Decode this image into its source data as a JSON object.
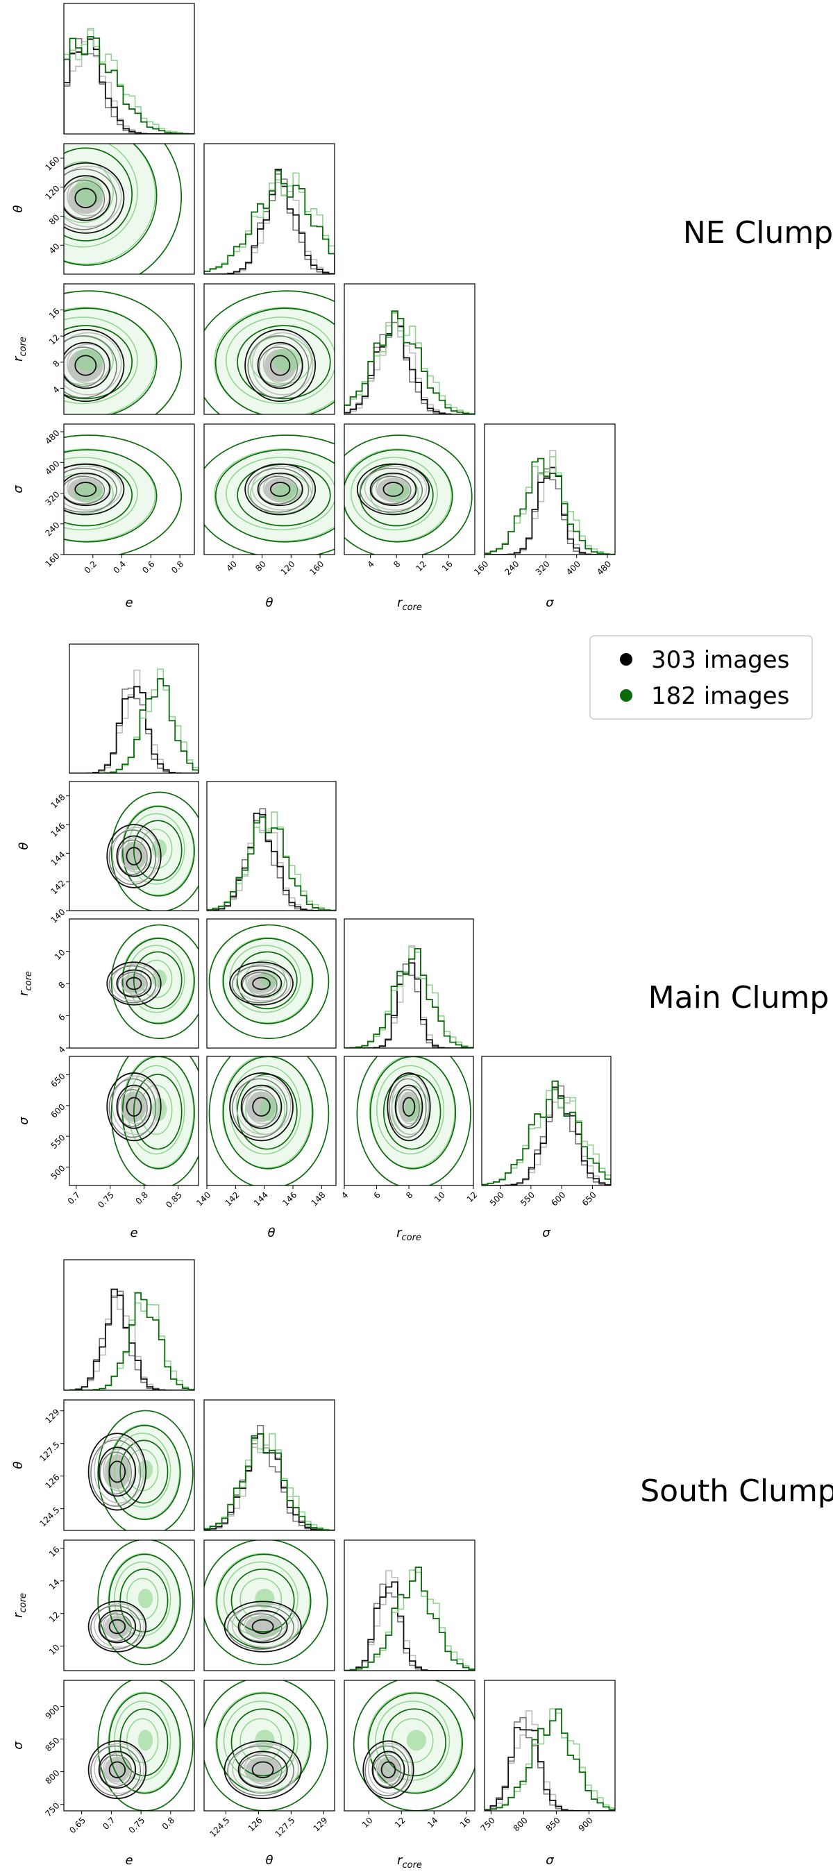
{
  "legend": [
    {
      "label": "303 images",
      "color": "#000000"
    },
    {
      "label": "182 images",
      "color": "#0a6b0a"
    }
  ],
  "colors": {
    "dark": "#111111",
    "grey": "#777777",
    "lightgrey": "#bdbdbd",
    "green": "#0a6b0a",
    "lightgreen": "#8fd48f"
  },
  "chart_data": [
    {
      "type": "corner",
      "title": "NE Clump",
      "params": [
        "e",
        "θ",
        "r_core",
        "σ"
      ],
      "axis_labels": [
        {
          "main": "e",
          "sub": ""
        },
        {
          "main": "θ",
          "sub": ""
        },
        {
          "main": "r",
          "sub": "core"
        },
        {
          "main": "σ",
          "sub": ""
        }
      ],
      "ranges": [
        [
          0,
          0.9
        ],
        [
          0,
          180
        ],
        [
          0,
          20
        ],
        [
          160,
          500
        ]
      ],
      "ticks": [
        [
          0.2,
          0.4,
          0.6,
          0.8
        ],
        [
          40,
          80,
          120,
          160
        ],
        [
          4,
          8,
          12,
          16
        ],
        [
          160,
          240,
          320,
          400,
          480
        ]
      ],
      "ytick_rows": [
        null,
        [
          40,
          80,
          120,
          160
        ],
        [
          4,
          8,
          12,
          16
        ],
        [
          160,
          240,
          320,
          400,
          480
        ]
      ],
      "posterior": {
        "303_images": {
          "mean": [
            0.15,
            105,
            7.5,
            330
          ],
          "sd": [
            0.12,
            22,
            2.5,
            30
          ]
        },
        "182_images": {
          "mean": [
            0.15,
            110,
            8,
            315
          ],
          "sd": [
            0.2,
            40,
            3.5,
            50
          ]
        }
      }
    },
    {
      "type": "corner",
      "title": "Main Clump",
      "params": [
        "e",
        "θ",
        "r_core",
        "σ"
      ],
      "axis_labels": [
        {
          "main": "e",
          "sub": ""
        },
        {
          "main": "θ",
          "sub": ""
        },
        {
          "main": "r",
          "sub": "core"
        },
        {
          "main": "σ",
          "sub": ""
        }
      ],
      "ranges": [
        [
          0.69,
          0.88
        ],
        [
          140,
          149
        ],
        [
          4,
          12
        ],
        [
          470,
          680
        ]
      ],
      "ticks": [
        [
          0.7,
          0.75,
          0.8,
          0.85
        ],
        [
          140,
          142,
          144,
          146,
          148
        ],
        [
          4,
          6,
          8,
          10,
          12
        ],
        [
          500,
          550,
          600,
          650
        ]
      ],
      "ytick_rows": [
        null,
        [
          140,
          142,
          144,
          146,
          148
        ],
        [
          4,
          6,
          8,
          10
        ],
        [
          500,
          550,
          600,
          650
        ]
      ],
      "posterior": {
        "303_images": {
          "mean": [
            0.785,
            143.8,
            8,
            598
          ],
          "sd": [
            0.018,
            1,
            0.6,
            25
          ]
        },
        "182_images": {
          "mean": [
            0.82,
            144.2,
            8.2,
            590
          ],
          "sd": [
            0.022,
            1.3,
            1.1,
            38
          ]
        }
      }
    },
    {
      "type": "corner",
      "title": "South Clump",
      "params": [
        "e",
        "θ",
        "r_core",
        "σ"
      ],
      "axis_labels": [
        {
          "main": "e",
          "sub": ""
        },
        {
          "main": "θ",
          "sub": ""
        },
        {
          "main": "r",
          "sub": "core"
        },
        {
          "main": "σ",
          "sub": ""
        }
      ],
      "ranges": [
        [
          0.62,
          0.84
        ],
        [
          123.5,
          129.5
        ],
        [
          8.5,
          16.5
        ],
        [
          740,
          940
        ]
      ],
      "ticks": [
        [
          0.65,
          0.7,
          0.75,
          0.8
        ],
        [
          124.5,
          126.0,
          127.5,
          129.0
        ],
        [
          10,
          12,
          14,
          16
        ],
        [
          750,
          800,
          850,
          900
        ]
      ],
      "ytick_rows": [
        null,
        [
          124.5,
          126.0,
          127.5,
          129.0
        ],
        [
          10,
          12,
          14,
          16
        ],
        [
          750,
          800,
          850,
          900
        ]
      ],
      "posterior": {
        "303_images": {
          "mean": [
            0.71,
            126.2,
            11.2,
            803
          ],
          "sd": [
            0.022,
            0.8,
            0.7,
            20
          ]
        },
        "182_images": {
          "mean": [
            0.755,
            126.2,
            12.8,
            845
          ],
          "sd": [
            0.025,
            0.9,
            1.2,
            32
          ]
        }
      }
    }
  ]
}
